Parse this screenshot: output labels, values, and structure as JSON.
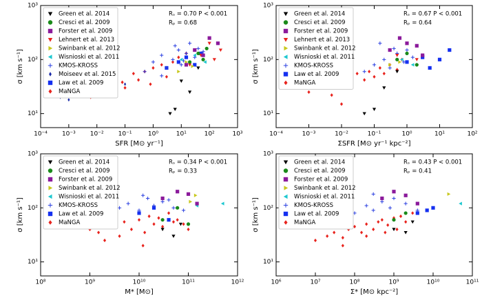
{
  "chart_data": [
    {
      "type": "scatter",
      "xlabel": "SFR [M⊙ yr⁻¹]",
      "ylabel": "σ [km s⁻¹]",
      "annotations": [
        "Rₛ = 0.70 P < 0.001",
        "Rₚ = 0.68"
      ],
      "xscale": "log",
      "yscale": "log",
      "legend": "upper left",
      "xlim": [
        0.0001,
        1000
      ],
      "ylim": [
        5.5,
        1000
      ],
      "xticks": [
        {
          "value": 0.0001,
          "label": "10⁻⁴"
        },
        {
          "value": 0.001,
          "label": "10⁻³"
        },
        {
          "value": 0.01,
          "label": "10⁻²"
        },
        {
          "value": 0.1,
          "label": "10⁻¹"
        },
        {
          "value": 1,
          "label": "10⁰"
        },
        {
          "value": 10,
          "label": "10¹"
        },
        {
          "value": 100,
          "label": "10²"
        },
        {
          "value": 1000,
          "label": "10³"
        }
      ],
      "yticks": [
        {
          "value": 10,
          "label": "10¹"
        },
        {
          "value": 100,
          "label": "10²"
        },
        {
          "value": 1000,
          "label": "10³"
        }
      ],
      "series": [
        {
          "name": "Green et al. 2014",
          "color": "#000000",
          "marker": "v",
          "x": [
            4,
            6,
            10,
            20,
            40
          ],
          "y": [
            10,
            12,
            40,
            25,
            70
          ]
        },
        {
          "name": "Cresci et al. 2009",
          "color": "#1a8a1a",
          "marker": "o",
          "x": [
            20,
            40,
            60,
            80
          ],
          "y": [
            90,
            130,
            100,
            160
          ]
        },
        {
          "name": "Forster et al. 2009",
          "color": "#8b1a9b",
          "marker": "s",
          "x": [
            15,
            30,
            60,
            100,
            200
          ],
          "y": [
            80,
            150,
            120,
            250,
            200
          ]
        },
        {
          "name": "Lehnert et al. 2013",
          "color": "#e8231d",
          "marker": "v",
          "x": [
            20,
            50,
            100,
            150,
            250
          ],
          "y": [
            80,
            120,
            200,
            100,
            150
          ]
        },
        {
          "name": "Swinbank et al. 2012",
          "color": "#c8c81e",
          "marker": ">",
          "x": [
            8,
            15,
            25
          ],
          "y": [
            60,
            90,
            75
          ]
        },
        {
          "name": "Wisnioski et al. 2011",
          "color": "#1ec8d0",
          "marker": "<",
          "x": [
            10,
            30,
            70
          ],
          "y": [
            100,
            120,
            90
          ]
        },
        {
          "name": "KMOS-KROSS",
          "color": "#2a3fe0",
          "marker": "+",
          "x": [
            0.5,
            1,
            2,
            3,
            5,
            8,
            10,
            15,
            20,
            30,
            40,
            60,
            2,
            6,
            12
          ],
          "y": [
            60,
            90,
            120,
            70,
            100,
            150,
            80,
            130,
            200,
            110,
            160,
            140,
            50,
            180,
            95
          ]
        },
        {
          "name": "Moiseev et al. 2015",
          "color": "#1a2aa8",
          "marker": "d",
          "x": [
            0.0005,
            0.001,
            0.002,
            0.005,
            0.01,
            0.02,
            0.05,
            0.1
          ],
          "y": [
            20,
            18,
            22,
            25,
            28,
            24,
            32,
            35
          ]
        },
        {
          "name": "Law et al. 2009",
          "color": "#1530f0",
          "marker": "s",
          "x": [
            3,
            8,
            15,
            30,
            50
          ],
          "y": [
            70,
            90,
            110,
            80,
            130
          ]
        },
        {
          "name": "MaNGA",
          "color": "#e8231d",
          "marker": "D",
          "x": [
            0.002,
            0.004,
            0.006,
            0.01,
            0.015,
            0.02,
            0.03,
            0.05,
            0.08,
            0.1,
            0.2,
            0.3,
            0.5,
            0.8,
            1,
            2,
            3,
            5,
            8,
            15
          ],
          "y": [
            25,
            30,
            20,
            35,
            28,
            40,
            22,
            45,
            38,
            30,
            55,
            42,
            60,
            35,
            70,
            80,
            48,
            90,
            110,
            130
          ]
        }
      ]
    },
    {
      "type": "scatter",
      "xlabel": "ΣSFR [M⊙ yr⁻¹ kpc⁻²]",
      "ylabel": "σ [km s⁻¹]",
      "annotations": [
        "Rₛ = 0.67 P < 0.001",
        "Rₚ = 0.64"
      ],
      "xscale": "log",
      "yscale": "log",
      "legend": "upper left",
      "xlim": [
        0.0001,
        100
      ],
      "ylim": [
        5.5,
        1000
      ],
      "xticks": [
        {
          "value": 0.0001,
          "label": "10⁻⁴"
        },
        {
          "value": 0.001,
          "label": "10⁻³"
        },
        {
          "value": 0.01,
          "label": "10⁻²"
        },
        {
          "value": 0.1,
          "label": "10⁻¹"
        },
        {
          "value": 1,
          "label": "10⁰"
        },
        {
          "value": 10,
          "label": "10¹"
        },
        {
          "value": 100,
          "label": "10²"
        }
      ],
      "yticks": [
        {
          "value": 10,
          "label": "10¹"
        },
        {
          "value": 100,
          "label": "10²"
        },
        {
          "value": 1000,
          "label": "10³"
        }
      ],
      "series": [
        {
          "name": "Green et al. 2014",
          "color": "#000000",
          "marker": "v",
          "x": [
            0.05,
            0.1,
            0.2,
            0.5
          ],
          "y": [
            10,
            12,
            30,
            60
          ]
        },
        {
          "name": "Cresci et al. 2009",
          "color": "#1a8a1a",
          "marker": "o",
          "x": [
            0.5,
            1,
            2
          ],
          "y": [
            100,
            130,
            80
          ]
        },
        {
          "name": "Forster et al. 2009",
          "color": "#8b1a9b",
          "marker": "s",
          "x": [
            0.3,
            0.6,
            1,
            2,
            3
          ],
          "y": [
            150,
            250,
            200,
            180,
            120
          ]
        },
        {
          "name": "Lehnert et al. 2013",
          "color": "#e8231d",
          "marker": "v",
          "x": [
            0.5,
            1,
            2
          ],
          "y": [
            120,
            200,
            100
          ]
        },
        {
          "name": "Swinbank et al. 2012",
          "color": "#c8c81e",
          "marker": ">",
          "x": [
            0.3,
            0.6
          ],
          "y": [
            80,
            90
          ]
        },
        {
          "name": "Wisnioski et al. 2011",
          "color": "#1ec8d0",
          "marker": "<",
          "x": [
            0.7,
            1.5
          ],
          "y": [
            100,
            80
          ]
        },
        {
          "name": "KMOS-KROSS",
          "color": "#2a3fe0",
          "marker": "+",
          "x": [
            0.05,
            0.1,
            0.2,
            0.3,
            0.5,
            0.8,
            1,
            1.5,
            2,
            3,
            0.15,
            0.4
          ],
          "y": [
            60,
            80,
            100,
            70,
            130,
            90,
            150,
            110,
            80,
            120,
            200,
            160
          ]
        },
        {
          "name": "Law et al. 2009",
          "color": "#1530f0",
          "marker": "s",
          "x": [
            1,
            3,
            5,
            10,
            20
          ],
          "y": [
            90,
            110,
            70,
            100,
            150
          ]
        },
        {
          "name": "MaNGA",
          "color": "#e8231d",
          "marker": "D",
          "x": [
            0.0008,
            0.001,
            0.002,
            0.003,
            0.005,
            0.008,
            0.01,
            0.015,
            0.02,
            0.03,
            0.05,
            0.07,
            0.1,
            0.15,
            0.2,
            0.3,
            0.5,
            0.7,
            1,
            0.01
          ],
          "y": [
            30,
            25,
            35,
            40,
            22,
            45,
            30,
            50,
            38,
            55,
            42,
            60,
            48,
            70,
            55,
            80,
            65,
            100,
            90,
            15
          ]
        }
      ]
    },
    {
      "type": "scatter",
      "xlabel": "M* [M⊙]",
      "ylabel": "σ [km s⁻¹]",
      "annotations": [
        "Rₛ = 0.34 P < 0.001",
        "Rₚ = 0.33"
      ],
      "xscale": "log",
      "yscale": "log",
      "legend": "upper left",
      "xlim": [
        100000000,
        1000000000000
      ],
      "ylim": [
        5.5,
        1000
      ],
      "xticks": [
        {
          "value": 100000000,
          "label": "10⁸"
        },
        {
          "value": 1000000000,
          "label": "10⁹"
        },
        {
          "value": 10000000000,
          "label": "10¹⁰"
        },
        {
          "value": 100000000000,
          "label": "10¹¹"
        },
        {
          "value": 1000000000000,
          "label": "10¹²"
        }
      ],
      "yticks": [
        {
          "value": 10,
          "label": "10¹"
        },
        {
          "value": 100,
          "label": "10²"
        },
        {
          "value": 1000,
          "label": "10³"
        }
      ],
      "series": [
        {
          "name": "Green et al. 2014",
          "color": "#000000",
          "marker": "v",
          "x": [
            30000000000,
            50000000000,
            70000000000
          ],
          "y": [
            40,
            30,
            50
          ]
        },
        {
          "name": "Cresci et al. 2009",
          "color": "#1a8a1a",
          "marker": "o",
          "x": [
            30000000000,
            60000000000,
            100000000000
          ],
          "y": [
            60,
            100,
            50
          ]
        },
        {
          "name": "Forster et al. 2009",
          "color": "#8b1a9b",
          "marker": "s",
          "x": [
            30000000000,
            60000000000,
            100000000000,
            150000000000
          ],
          "y": [
            150,
            200,
            180,
            120
          ]
        },
        {
          "name": "Swinbank et al. 2012",
          "color": "#c8c81e",
          "marker": ">",
          "x": [
            110000000000,
            140000000000
          ],
          "y": [
            130,
            170
          ]
        },
        {
          "name": "Wisnioski et al. 2011",
          "color": "#1ec8d0",
          "marker": "<",
          "x": [
            150000000000,
            500000000000
          ],
          "y": [
            110,
            120
          ]
        },
        {
          "name": "KMOS-KROSS",
          "color": "#2a3fe0",
          "marker": "+",
          "x": [
            2000000000,
            4000000000,
            6000000000,
            10000000000,
            15000000000,
            20000000000,
            30000000000,
            50000000000,
            80000000000,
            12000000000,
            40000000000
          ],
          "y": [
            80,
            100,
            120,
            90,
            150,
            110,
            130,
            100,
            90,
            170,
            140
          ]
        },
        {
          "name": "Law et al. 2009",
          "color": "#1530f0",
          "marker": "s",
          "x": [
            10000000000,
            20000000000,
            40000000000
          ],
          "y": [
            80,
            100,
            60
          ]
        },
        {
          "name": "MaNGA",
          "color": "#e8231d",
          "marker": "D",
          "x": [
            1000000000,
            1500000000,
            2000000000,
            3000000000,
            4000000000,
            5000000000,
            7000000000,
            10000000000,
            13000000000,
            16000000000,
            20000000000,
            25000000000,
            30000000000,
            40000000000,
            50000000000,
            60000000000,
            80000000000,
            100000000000,
            2000000000,
            12000000000
          ],
          "y": [
            40,
            35,
            50,
            45,
            30,
            55,
            40,
            60,
            35,
            70,
            50,
            65,
            45,
            80,
            55,
            60,
            50,
            40,
            25,
            20
          ]
        }
      ]
    },
    {
      "type": "scatter",
      "xlabel": "Σ* [M⊙ kpc⁻²]",
      "ylabel": "σ [km s⁻¹]",
      "annotations": [
        "Rₛ = 0.43 P < 0.001",
        "Rₚ = 0.41"
      ],
      "xscale": "log",
      "yscale": "log",
      "legend": "upper left",
      "xlim": [
        1000000,
        100000000000
      ],
      "ylim": [
        5.5,
        1000
      ],
      "xticks": [
        {
          "value": 1000000,
          "label": "10⁶"
        },
        {
          "value": 10000000,
          "label": "10⁷"
        },
        {
          "value": 100000000,
          "label": "10⁸"
        },
        {
          "value": 1000000000,
          "label": "10⁹"
        },
        {
          "value": 10000000000,
          "label": "10¹⁰"
        },
        {
          "value": 100000000000,
          "label": "10¹¹"
        }
      ],
      "yticks": [
        {
          "value": 10,
          "label": "10¹"
        },
        {
          "value": 100,
          "label": "10²"
        },
        {
          "value": 1000,
          "label": "10³"
        }
      ],
      "series": [
        {
          "name": "Green et al. 2014",
          "color": "#000000",
          "marker": "v",
          "x": [
            1000000000,
            2000000000,
            3000000000
          ],
          "y": [
            40,
            35,
            55
          ]
        },
        {
          "name": "Cresci et al. 2009",
          "color": "#1a8a1a",
          "marker": "o",
          "x": [
            1000000000,
            2000000000
          ],
          "y": [
            60,
            80
          ]
        },
        {
          "name": "Forster et al. 2009",
          "color": "#8b1a9b",
          "marker": "s",
          "x": [
            500000000,
            1000000000,
            2000000000,
            4000000000
          ],
          "y": [
            150,
            200,
            170,
            120
          ]
        },
        {
          "name": "Swinbank et al. 2012",
          "color": "#c8c81e",
          "marker": ">",
          "x": [
            25000000000
          ],
          "y": [
            180
          ]
        },
        {
          "name": "Wisnioski et al. 2011",
          "color": "#1ec8d0",
          "marker": "<",
          "x": [
            50000000000
          ],
          "y": [
            120
          ]
        },
        {
          "name": "KMOS-KROSS",
          "color": "#2a3fe0",
          "marker": "+",
          "x": [
            50000000,
            100000000,
            200000000,
            300000000,
            500000000,
            800000000,
            1000000000,
            2000000000,
            4000000000,
            300000000
          ],
          "y": [
            60,
            80,
            110,
            90,
            130,
            100,
            150,
            120,
            90,
            180
          ]
        },
        {
          "name": "Law et al. 2009",
          "color": "#1530f0",
          "marker": "s",
          "x": [
            4000000000,
            7000000000,
            10000000000
          ],
          "y": [
            80,
            90,
            100
          ]
        },
        {
          "name": "MaNGA",
          "color": "#e8231d",
          "marker": "D",
          "x": [
            10000000,
            20000000,
            30000000,
            50000000,
            70000000,
            100000000,
            150000000,
            200000000,
            300000000,
            400000000,
            500000000,
            700000000,
            1000000000,
            1500000000,
            2000000000,
            3000000000,
            50000000,
            200000000,
            600000000,
            1200000000
          ],
          "y": [
            25,
            30,
            35,
            28,
            40,
            45,
            35,
            50,
            40,
            55,
            60,
            48,
            65,
            70,
            55,
            80,
            20,
            30,
            35,
            40
          ]
        }
      ]
    }
  ]
}
